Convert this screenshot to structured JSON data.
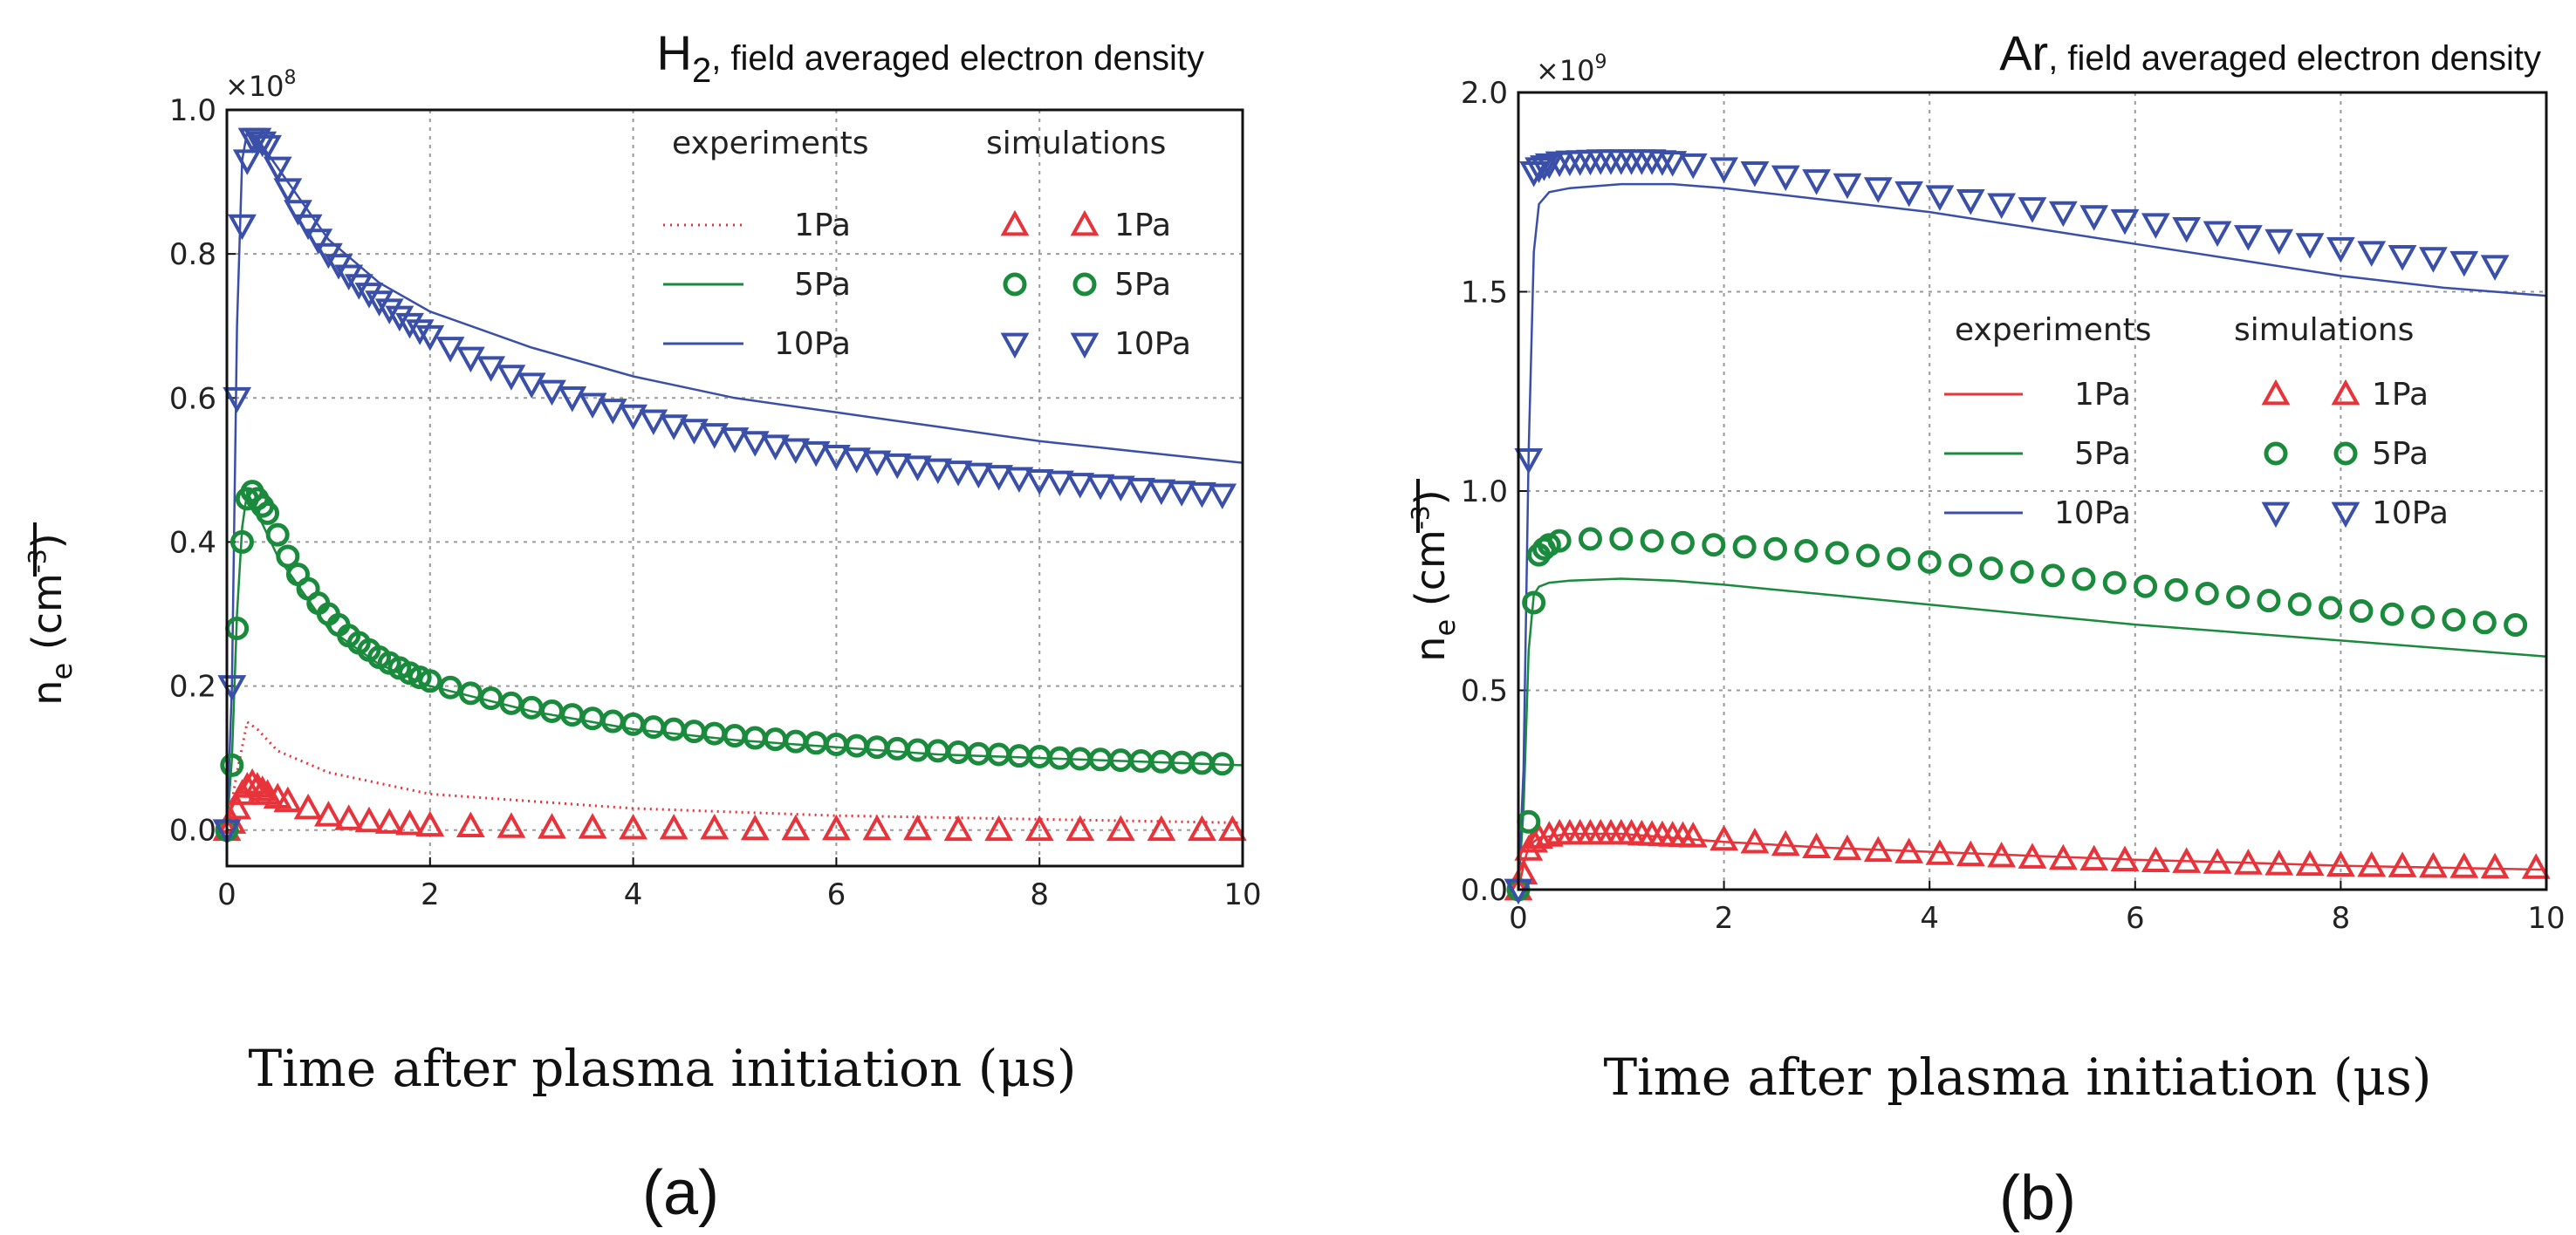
{
  "colors": {
    "p1": "#e8333a",
    "p5": "#1a8a3c",
    "p10": "#3a4fa8",
    "grid": "#9a9a9a"
  },
  "chart_data": [
    {
      "type": "line",
      "panel_label": "(a)",
      "title_main": "H",
      "title_sub": "2",
      "title_rest": ", field averaged electron density",
      "multiplier_base": "×10",
      "multiplier_exp": "8",
      "ylabel_main": "n",
      "ylabel_sub": "e",
      "ylabel_unit": " (cm",
      "ylabel_unit_exp": "-3",
      "ylabel_close": ")",
      "xlabel": "Time after plasma initiation (μs)",
      "xlim": [
        0,
        10
      ],
      "ylim": [
        -0.05,
        1.0
      ],
      "xticks": [
        "0",
        "2",
        "4",
        "6",
        "8",
        "10"
      ],
      "xtick_values": [
        0,
        2,
        4,
        6,
        8,
        10
      ],
      "yticks": [
        "0.0",
        "0.2",
        "0.4",
        "0.6",
        "0.8",
        "1.0"
      ],
      "ytick_values": [
        0,
        0.2,
        0.4,
        0.6,
        0.8,
        1.0
      ],
      "legend": {
        "experiments_title": "experiments",
        "simulations_title": "simulations",
        "entries": [
          "1Pa",
          "5Pa",
          "10Pa"
        ]
      },
      "series": [
        {
          "name": "1Pa",
          "key": "p1",
          "exp_style": "dotted",
          "marker": "triangle-up",
          "exp": {
            "x": [
              0,
              0.1,
              0.2,
              0.3,
              0.5,
              1,
              2,
              3,
              4,
              6,
              8,
              10
            ],
            "y": [
              0,
              0.08,
              0.15,
              0.14,
              0.11,
              0.08,
              0.05,
              0.04,
              0.03,
              0.02,
              0.015,
              0.01
            ]
          },
          "sim": {
            "x": [
              0,
              0.05,
              0.1,
              0.15,
              0.2,
              0.25,
              0.3,
              0.35,
              0.4,
              0.5,
              0.6,
              0.8,
              1,
              1.2,
              1.4,
              1.6,
              1.8,
              2,
              2.4,
              2.8,
              3.2,
              3.6,
              4,
              4.4,
              4.8,
              5.2,
              5.6,
              6,
              6.4,
              6.8,
              7.2,
              7.6,
              8,
              8.4,
              8.8,
              9.2,
              9.6,
              9.9
            ],
            "y": [
              0,
              0.01,
              0.03,
              0.05,
              0.06,
              0.065,
              0.06,
              0.055,
              0.05,
              0.045,
              0.04,
              0.03,
              0.02,
              0.015,
              0.012,
              0.01,
              0.008,
              0.006,
              0.005,
              0.004,
              0.003,
              0.003,
              0.002,
              0.002,
              0.002,
              0.001,
              0.001,
              0.001,
              0.001,
              0.001,
              0,
              0,
              0,
              0,
              0,
              0,
              0,
              0
            ]
          }
        },
        {
          "name": "5Pa",
          "key": "p5",
          "exp_style": "solid",
          "marker": "circle",
          "exp": {
            "x": [
              0,
              0.05,
              0.1,
              0.15,
              0.2,
              0.3,
              0.5,
              0.8,
              1,
              1.5,
              2,
              3,
              4,
              5,
              6,
              7,
              8,
              9,
              10
            ],
            "y": [
              0,
              0.1,
              0.3,
              0.42,
              0.47,
              0.44,
              0.38,
              0.32,
              0.28,
              0.23,
              0.2,
              0.165,
              0.14,
              0.125,
              0.115,
              0.105,
              0.1,
              0.095,
              0.09
            ]
          },
          "sim": {
            "x": [
              0,
              0.05,
              0.1,
              0.15,
              0.2,
              0.25,
              0.3,
              0.35,
              0.4,
              0.5,
              0.6,
              0.7,
              0.8,
              0.9,
              1,
              1.1,
              1.2,
              1.3,
              1.4,
              1.5,
              1.6,
              1.7,
              1.8,
              1.9,
              2,
              2.2,
              2.4,
              2.6,
              2.8,
              3,
              3.2,
              3.4,
              3.6,
              3.8,
              4,
              4.2,
              4.4,
              4.6,
              4.8,
              5,
              5.2,
              5.4,
              5.6,
              5.8,
              6,
              6.2,
              6.4,
              6.6,
              6.8,
              7,
              7.2,
              7.4,
              7.6,
              7.8,
              8,
              8.2,
              8.4,
              8.6,
              8.8,
              9,
              9.2,
              9.4,
              9.6,
              9.8
            ],
            "y": [
              0,
              0.09,
              0.28,
              0.4,
              0.46,
              0.47,
              0.46,
              0.45,
              0.44,
              0.41,
              0.38,
              0.355,
              0.335,
              0.315,
              0.3,
              0.285,
              0.27,
              0.26,
              0.25,
              0.24,
              0.232,
              0.225,
              0.218,
              0.212,
              0.207,
              0.198,
              0.19,
              0.183,
              0.176,
              0.17,
              0.165,
              0.16,
              0.155,
              0.151,
              0.147,
              0.143,
              0.14,
              0.137,
              0.134,
              0.131,
              0.128,
              0.126,
              0.123,
              0.121,
              0.119,
              0.117,
              0.115,
              0.113,
              0.111,
              0.11,
              0.108,
              0.106,
              0.105,
              0.103,
              0.102,
              0.1,
              0.099,
              0.098,
              0.097,
              0.096,
              0.095,
              0.094,
              0.093,
              0.092
            ]
          }
        },
        {
          "name": "10Pa",
          "key": "p10",
          "exp_style": "solid",
          "marker": "triangle-down",
          "exp": {
            "x": [
              0,
              0.05,
              0.1,
              0.15,
              0.2,
              0.3,
              0.5,
              0.8,
              1,
              1.5,
              2,
              3,
              4,
              5,
              6,
              7,
              8,
              9,
              10
            ],
            "y": [
              0,
              0.2,
              0.7,
              0.93,
              0.97,
              0.96,
              0.92,
              0.86,
              0.82,
              0.76,
              0.72,
              0.67,
              0.63,
              0.6,
              0.58,
              0.56,
              0.54,
              0.525,
              0.51
            ]
          },
          "sim": {
            "x": [
              0,
              0.05,
              0.1,
              0.15,
              0.2,
              0.25,
              0.3,
              0.35,
              0.4,
              0.5,
              0.6,
              0.7,
              0.8,
              0.9,
              1,
              1.1,
              1.2,
              1.3,
              1.4,
              1.5,
              1.6,
              1.7,
              1.8,
              1.9,
              2,
              2.2,
              2.4,
              2.6,
              2.8,
              3,
              3.2,
              3.4,
              3.6,
              3.8,
              4,
              4.2,
              4.4,
              4.6,
              4.8,
              5,
              5.2,
              5.4,
              5.6,
              5.8,
              6,
              6.2,
              6.4,
              6.6,
              6.8,
              7,
              7.2,
              7.4,
              7.6,
              7.8,
              8,
              8.2,
              8.4,
              8.6,
              8.8,
              9,
              9.2,
              9.4,
              9.6,
              9.8
            ],
            "y": [
              0,
              0.2,
              0.6,
              0.84,
              0.93,
              0.96,
              0.96,
              0.955,
              0.95,
              0.92,
              0.89,
              0.86,
              0.84,
              0.82,
              0.8,
              0.785,
              0.77,
              0.757,
              0.745,
              0.734,
              0.723,
              0.713,
              0.703,
              0.694,
              0.686,
              0.67,
              0.656,
              0.643,
              0.631,
              0.62,
              0.61,
              0.601,
              0.592,
              0.584,
              0.576,
              0.569,
              0.562,
              0.556,
              0.55,
              0.544,
              0.539,
              0.534,
              0.529,
              0.525,
              0.52,
              0.516,
              0.512,
              0.508,
              0.505,
              0.501,
              0.498,
              0.495,
              0.492,
              0.489,
              0.486,
              0.484,
              0.481,
              0.479,
              0.477,
              0.474,
              0.472,
              0.47,
              0.468,
              0.466
            ]
          }
        }
      ]
    },
    {
      "type": "line",
      "panel_label": "(b)",
      "title_main": "Ar",
      "title_sub": "",
      "title_rest": ", field averaged electron density",
      "multiplier_base": "×10",
      "multiplier_exp": "9",
      "ylabel_main": "n",
      "ylabel_sub": "e",
      "ylabel_unit": " (cm",
      "ylabel_unit_exp": "-3",
      "ylabel_close": ")",
      "xlabel": "Time after plasma initiation (μs)",
      "xlim": [
        0,
        10
      ],
      "ylim": [
        0,
        2.0
      ],
      "xticks": [
        "0",
        "2",
        "4",
        "6",
        "8",
        "10"
      ],
      "xtick_values": [
        0,
        2,
        4,
        6,
        8,
        10
      ],
      "yticks": [
        "0.0",
        "0.5",
        "1.0",
        "1.5",
        "2.0"
      ],
      "ytick_values": [
        0,
        0.5,
        1.0,
        1.5,
        2.0
      ],
      "legend": {
        "experiments_title": "experiments",
        "simulations_title": "simulations",
        "entries": [
          "1Pa",
          "5Pa",
          "10Pa"
        ]
      },
      "series": [
        {
          "name": "1Pa",
          "key": "p1",
          "exp_style": "solid",
          "marker": "triangle-up",
          "exp": {
            "x": [
              0,
              0.05,
              0.1,
              0.2,
              0.5,
              1,
              2,
              3,
              4,
              5,
              6,
              7,
              8,
              9,
              10
            ],
            "y": [
              0,
              0.06,
              0.11,
              0.13,
              0.14,
              0.14,
              0.12,
              0.105,
              0.095,
              0.085,
              0.075,
              0.068,
              0.06,
              0.055,
              0.05
            ]
          },
          "sim": {
            "x": [
              0,
              0.05,
              0.1,
              0.15,
              0.2,
              0.3,
              0.4,
              0.5,
              0.6,
              0.7,
              0.8,
              0.9,
              1,
              1.1,
              1.2,
              1.3,
              1.4,
              1.5,
              1.6,
              1.7,
              2,
              2.3,
              2.6,
              2.9,
              3.2,
              3.5,
              3.8,
              4.1,
              4.4,
              4.7,
              5,
              5.3,
              5.6,
              5.9,
              6.2,
              6.5,
              6.8,
              7.1,
              7.4,
              7.7,
              8,
              8.3,
              8.6,
              8.9,
              9.2,
              9.5,
              9.9
            ],
            "y": [
              0,
              0.04,
              0.1,
              0.12,
              0.13,
              0.135,
              0.14,
              0.14,
              0.14,
              0.14,
              0.14,
              0.14,
              0.14,
              0.14,
              0.138,
              0.137,
              0.136,
              0.135,
              0.134,
              0.133,
              0.125,
              0.118,
              0.112,
              0.106,
              0.101,
              0.097,
              0.093,
              0.089,
              0.086,
              0.083,
              0.08,
              0.077,
              0.075,
              0.073,
              0.071,
              0.069,
              0.067,
              0.065,
              0.063,
              0.062,
              0.06,
              0.059,
              0.058,
              0.057,
              0.056,
              0.055,
              0.054
            ]
          }
        },
        {
          "name": "5Pa",
          "key": "p5",
          "exp_style": "solid",
          "marker": "circle",
          "exp": {
            "x": [
              0,
              0.05,
              0.1,
              0.15,
              0.2,
              0.3,
              0.5,
              1,
              1.5,
              2,
              3,
              4,
              5,
              6,
              7,
              8,
              9,
              10
            ],
            "y": [
              0,
              0.2,
              0.6,
              0.74,
              0.76,
              0.77,
              0.775,
              0.78,
              0.775,
              0.765,
              0.74,
              0.715,
              0.69,
              0.665,
              0.645,
              0.625,
              0.605,
              0.585
            ]
          },
          "sim": {
            "x": [
              0,
              0.1,
              0.15,
              0.2,
              0.25,
              0.3,
              0.4,
              0.7,
              1,
              1.3,
              1.6,
              1.9,
              2.2,
              2.5,
              2.8,
              3.1,
              3.4,
              3.7,
              4,
              4.3,
              4.6,
              4.9,
              5.2,
              5.5,
              5.8,
              6.1,
              6.4,
              6.7,
              7,
              7.3,
              7.6,
              7.9,
              8.2,
              8.5,
              8.8,
              9.1,
              9.4,
              9.7
            ],
            "y": [
              0,
              0.17,
              0.72,
              0.84,
              0.855,
              0.865,
              0.875,
              0.88,
              0.88,
              0.875,
              0.87,
              0.865,
              0.86,
              0.855,
              0.85,
              0.845,
              0.838,
              0.83,
              0.822,
              0.814,
              0.806,
              0.797,
              0.788,
              0.779,
              0.77,
              0.761,
              0.752,
              0.743,
              0.734,
              0.725,
              0.716,
              0.707,
              0.699,
              0.691,
              0.684,
              0.677,
              0.67,
              0.664
            ]
          }
        },
        {
          "name": "10Pa",
          "key": "p10",
          "exp_style": "solid",
          "marker": "triangle-down",
          "exp": {
            "x": [
              0,
              0.05,
              0.1,
              0.15,
              0.2,
              0.3,
              0.5,
              1,
              1.5,
              2,
              3,
              4,
              5,
              6,
              7,
              8,
              9,
              10
            ],
            "y": [
              0,
              0.3,
              1.1,
              1.6,
              1.72,
              1.75,
              1.76,
              1.77,
              1.77,
              1.76,
              1.73,
              1.7,
              1.66,
              1.62,
              1.58,
              1.54,
              1.51,
              1.49
            ]
          },
          "sim": {
            "x": [
              0,
              0.1,
              0.15,
              0.2,
              0.25,
              0.3,
              0.4,
              0.5,
              0.6,
              0.7,
              0.8,
              0.9,
              1,
              1.1,
              1.2,
              1.3,
              1.4,
              1.5,
              1.7,
              2,
              2.3,
              2.6,
              2.9,
              3.2,
              3.5,
              3.8,
              4.1,
              4.4,
              4.7,
              5,
              5.3,
              5.6,
              5.9,
              6.2,
              6.5,
              6.8,
              7.1,
              7.4,
              7.7,
              8,
              8.3,
              8.6,
              8.9,
              9.2,
              9.5
            ],
            "y": [
              0,
              1.08,
              1.8,
              1.81,
              1.815,
              1.82,
              1.825,
              1.827,
              1.828,
              1.829,
              1.83,
              1.83,
              1.83,
              1.83,
              1.83,
              1.83,
              1.828,
              1.826,
              1.82,
              1.81,
              1.8,
              1.79,
              1.78,
              1.77,
              1.76,
              1.75,
              1.74,
              1.73,
              1.72,
              1.71,
              1.7,
              1.69,
              1.68,
              1.67,
              1.66,
              1.65,
              1.64,
              1.63,
              1.62,
              1.61,
              1.6,
              1.59,
              1.585,
              1.575,
              1.565
            ]
          }
        }
      ]
    }
  ]
}
